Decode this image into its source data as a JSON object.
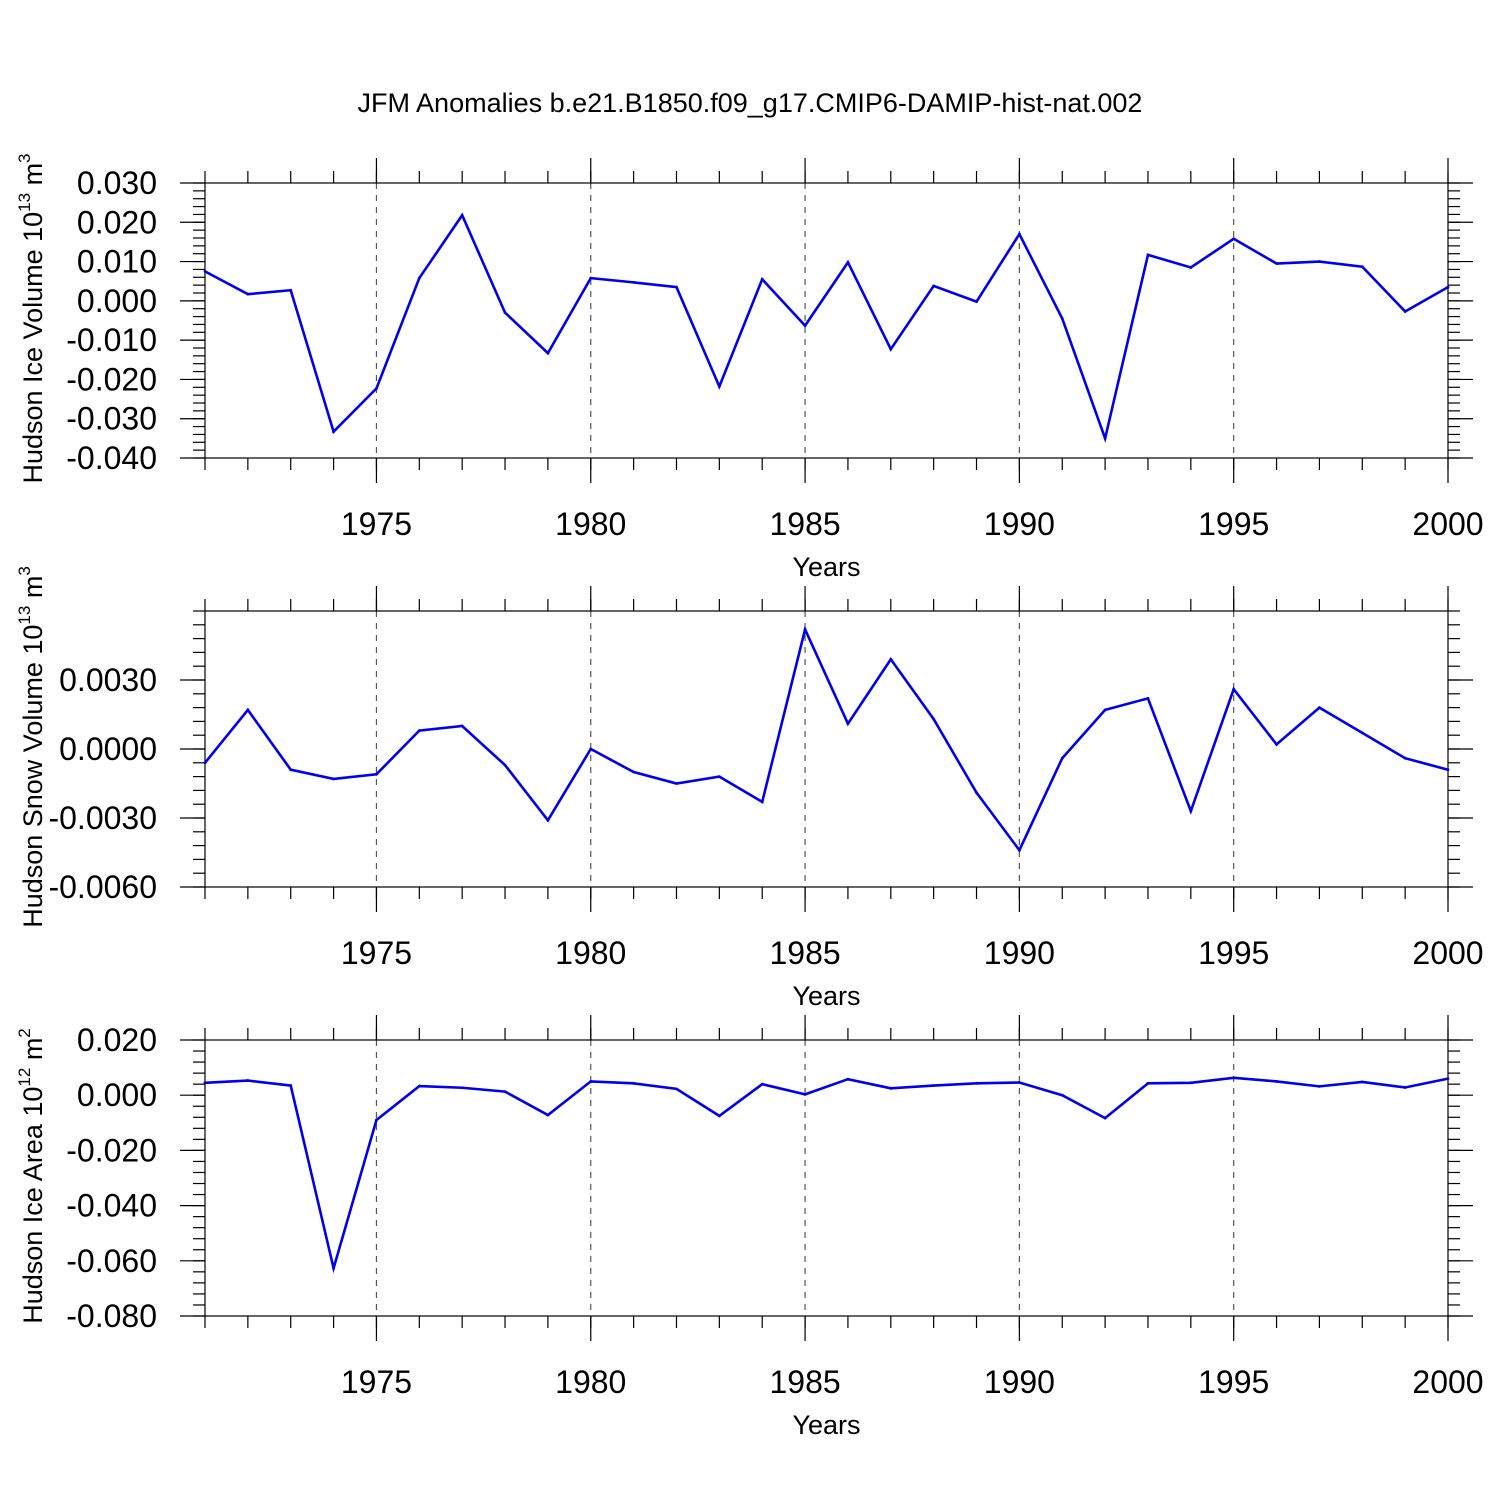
{
  "title": "JFM Anomalies b.e21.B1850.f09_g17.CMIP6-DAMIP-hist-nat.002",
  "colors": {
    "series": "#0000ee",
    "grid": "#555555",
    "axis": "#000000"
  },
  "chart_data": [
    {
      "type": "line",
      "title": "",
      "xlabel": "Years",
      "ylabel": "Hudson Ice Volume 10",
      "ylabel_sup": "13",
      "ylabel_unit": " m",
      "ylabel_unit_sup": "3",
      "xlim": [
        1971,
        2000
      ],
      "ylim": [
        -0.04,
        0.03
      ],
      "yticks": [
        0.03,
        0.02,
        0.01,
        0.0,
        -0.01,
        -0.02,
        -0.03,
        -0.04
      ],
      "ytick_labels": [
        "0.030",
        "0.020",
        "0.010",
        "0.000",
        "-0.010",
        "-0.020",
        "-0.030",
        "-0.040"
      ],
      "yminor_step": 0.002,
      "xticks": [
        1975,
        1980,
        1985,
        1990,
        1995,
        2000
      ],
      "xtick_labels": [
        "1975",
        "1980",
        "1985",
        "1990",
        "1995",
        "2000"
      ],
      "grid_x": true,
      "x": [
        1971,
        1972,
        1973,
        1974,
        1975,
        1976,
        1977,
        1978,
        1979,
        1980,
        1981,
        1982,
        1983,
        1984,
        1985,
        1986,
        1987,
        1988,
        1989,
        1990,
        1991,
        1992,
        1993,
        1994,
        1995,
        1996,
        1997,
        1998,
        1999,
        2000
      ],
      "series": [
        {
          "values": [
            0.0075,
            0.0017,
            0.0027,
            -0.0333,
            -0.0223,
            0.0058,
            0.0218,
            -0.003,
            -0.0133,
            0.0058,
            0.0047,
            0.0035,
            -0.0218,
            0.0055,
            -0.0063,
            0.0098,
            -0.0123,
            0.0038,
            -0.0002,
            0.017,
            -0.0045,
            -0.035,
            0.0117,
            0.0085,
            0.0158,
            0.0095,
            0.01,
            0.0087,
            -0.0027,
            0.0035
          ]
        }
      ]
    },
    {
      "type": "line",
      "title": "",
      "xlabel": "Years",
      "ylabel": "Hudson Snow Volume 10",
      "ylabel_sup": "13",
      "ylabel_unit": " m",
      "ylabel_unit_sup": "3",
      "xlim": [
        1971,
        2000
      ],
      "ylim": [
        -0.006,
        0.006
      ],
      "yticks": [
        0.003,
        0.0,
        -0.003,
        -0.006
      ],
      "ytick_labels": [
        "0.0030",
        "0.0000",
        "-0.0030",
        "-0.0060"
      ],
      "yminor_step": 0.0006,
      "xticks": [
        1975,
        1980,
        1985,
        1990,
        1995,
        2000
      ],
      "xtick_labels": [
        "1975",
        "1980",
        "1985",
        "1990",
        "1995",
        "2000"
      ],
      "grid_x": true,
      "x": [
        1971,
        1972,
        1973,
        1974,
        1975,
        1976,
        1977,
        1978,
        1979,
        1980,
        1981,
        1982,
        1983,
        1984,
        1985,
        1986,
        1987,
        1988,
        1989,
        1990,
        1991,
        1992,
        1993,
        1994,
        1995,
        1996,
        1997,
        1998,
        1999,
        2000
      ],
      "series": [
        {
          "values": [
            -0.0006,
            0.0017,
            -0.0009,
            -0.0013,
            -0.0011,
            0.0008,
            0.001,
            -0.0007,
            -0.0031,
            0.0,
            -0.001,
            -0.0015,
            -0.0012,
            -0.0023,
            0.0052,
            0.0011,
            0.0039,
            0.0013,
            -0.0019,
            -0.0044,
            -0.0004,
            0.0017,
            0.0022,
            -0.0027,
            0.0026,
            0.0002,
            0.0018,
            0.0007,
            -0.0004,
            -0.0009
          ]
        }
      ]
    },
    {
      "type": "line",
      "title": "",
      "xlabel": "Years",
      "ylabel": "Hudson Ice Area 10",
      "ylabel_sup": "12",
      "ylabel_unit": " m",
      "ylabel_unit_sup": "2",
      "xlim": [
        1971,
        2000
      ],
      "ylim": [
        -0.08,
        0.02
      ],
      "yticks": [
        0.02,
        0.0,
        -0.02,
        -0.04,
        -0.06,
        -0.08
      ],
      "ytick_labels": [
        "0.020",
        "0.000",
        "-0.020",
        "-0.040",
        "-0.060",
        "-0.080"
      ],
      "yminor_step": 0.004,
      "xticks": [
        1975,
        1980,
        1985,
        1990,
        1995,
        2000
      ],
      "xtick_labels": [
        "1975",
        "1980",
        "1985",
        "1990",
        "1995",
        "2000"
      ],
      "grid_x": true,
      "x": [
        1971,
        1972,
        1973,
        1974,
        1975,
        1976,
        1977,
        1978,
        1979,
        1980,
        1981,
        1982,
        1983,
        1984,
        1985,
        1986,
        1987,
        1988,
        1989,
        1990,
        1991,
        1992,
        1993,
        1994,
        1995,
        1996,
        1997,
        1998,
        1999,
        2000
      ],
      "series": [
        {
          "values": [
            0.0045,
            0.0053,
            0.0035,
            -0.0627,
            -0.009,
            0.0033,
            0.0027,
            0.0013,
            -0.0072,
            0.005,
            0.0043,
            0.0023,
            -0.0075,
            0.004,
            0.0003,
            0.0058,
            0.0025,
            0.0035,
            0.0043,
            0.0046,
            0.0,
            -0.0083,
            0.0043,
            0.0045,
            0.0063,
            0.005,
            0.0032,
            0.0048,
            0.0028,
            0.006
          ]
        }
      ]
    }
  ]
}
